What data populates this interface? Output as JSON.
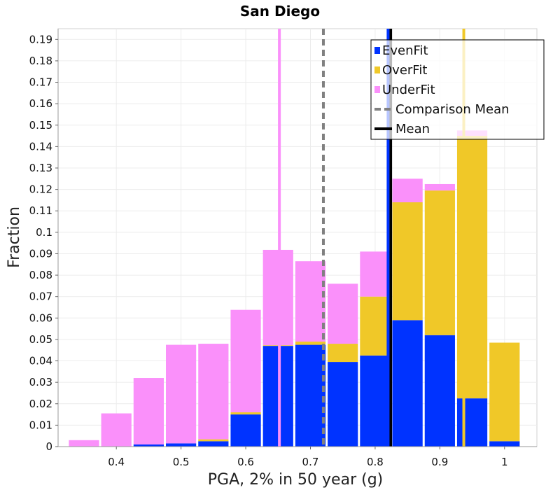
{
  "chart_data": {
    "type": "bar",
    "title": "San Diego",
    "xlabel": "PGA, 2% in 50 year (g)",
    "ylabel": "Fraction",
    "xlim": [
      0.31,
      1.05
    ],
    "ylim": [
      0,
      0.195
    ],
    "bin_width": 0.05,
    "grid": true,
    "legend_position": "top-right",
    "x_ticks": [
      {
        "value": 0.4,
        "label": "0.4"
      },
      {
        "value": 0.5,
        "label": "0.5"
      },
      {
        "value": 0.6,
        "label": "0.6"
      },
      {
        "value": 0.7,
        "label": "0.7"
      },
      {
        "value": 0.8,
        "label": "0.8"
      },
      {
        "value": 0.9,
        "label": "0.9"
      },
      {
        "value": 1.0,
        "label": "1"
      }
    ],
    "y_ticks": [
      {
        "value": 0,
        "label": "0"
      },
      {
        "value": 0.01,
        "label": "0.01"
      },
      {
        "value": 0.02,
        "label": "0.02"
      },
      {
        "value": 0.03,
        "label": "0.03"
      },
      {
        "value": 0.04,
        "label": "0.04"
      },
      {
        "value": 0.05,
        "label": "0.05"
      },
      {
        "value": 0.06,
        "label": "0.06"
      },
      {
        "value": 0.07,
        "label": "0.07"
      },
      {
        "value": 0.08,
        "label": "0.08"
      },
      {
        "value": 0.09,
        "label": "0.09"
      },
      {
        "value": 0.1,
        "label": "0.1"
      },
      {
        "value": 0.11,
        "label": "0.11"
      },
      {
        "value": 0.12,
        "label": "0.12"
      },
      {
        "value": 0.13,
        "label": "0.13"
      },
      {
        "value": 0.14,
        "label": "0.14"
      },
      {
        "value": 0.15,
        "label": "0.15"
      },
      {
        "value": 0.16,
        "label": "0.16"
      },
      {
        "value": 0.17,
        "label": "0.17"
      },
      {
        "value": 0.18,
        "label": "0.18"
      },
      {
        "value": 0.19,
        "label": "0.19"
      }
    ],
    "bin_centers": [
      0.35,
      0.4,
      0.45,
      0.5,
      0.55,
      0.6,
      0.65,
      0.7,
      0.75,
      0.8,
      0.85,
      0.9,
      0.95,
      1.0
    ],
    "series": [
      {
        "name": "EvenFit",
        "color": "#0033ff",
        "values": [
          0.0,
          0.0,
          0.001,
          0.0015,
          0.0025,
          0.015,
          0.047,
          0.0475,
          0.0395,
          0.0425,
          0.059,
          0.052,
          0.0225,
          0.0025
        ]
      },
      {
        "name": "OverFit",
        "color": "#f0c828",
        "values": [
          0.0,
          0.0,
          0.0,
          0.0,
          0.0009,
          0.001,
          0.0003,
          0.0015,
          0.0085,
          0.0275,
          0.055,
          0.0675,
          0.1225,
          0.046
        ]
      },
      {
        "name": "UnderFit",
        "color": "#fa90fa",
        "values": [
          0.003,
          0.0155,
          0.031,
          0.046,
          0.0446,
          0.0478,
          0.0445,
          0.0375,
          0.028,
          0.021,
          0.011,
          0.003,
          0.0025,
          0.0
        ]
      }
    ],
    "markers": [
      {
        "name": "Mean",
        "value": 0.824,
        "color": "#000000",
        "style": "solid"
      },
      {
        "name": "Comparison Mean",
        "value": 0.72,
        "color": "#808080",
        "style": "dashed"
      },
      {
        "name": "UnderFit mean",
        "value": 0.652,
        "color": "#fa90fa",
        "style": "solid",
        "in_legend": false
      },
      {
        "name": "EvenFit mean",
        "value": 0.82,
        "color": "#0033ff",
        "style": "solid",
        "in_legend": false
      },
      {
        "name": "OverFit mean",
        "value": 0.937,
        "color": "#f0c828",
        "style": "solid",
        "in_legend": false
      }
    ],
    "legend": [
      {
        "label": "EvenFit",
        "kind": "box",
        "color": "#0033ff"
      },
      {
        "label": "OverFit",
        "kind": "box",
        "color": "#f0c828"
      },
      {
        "label": "UnderFit",
        "kind": "box",
        "color": "#fa90fa"
      },
      {
        "label": "Comparison Mean",
        "kind": "dashed",
        "color": "#808080"
      },
      {
        "label": "Mean",
        "kind": "line",
        "color": "#000000"
      }
    ]
  }
}
